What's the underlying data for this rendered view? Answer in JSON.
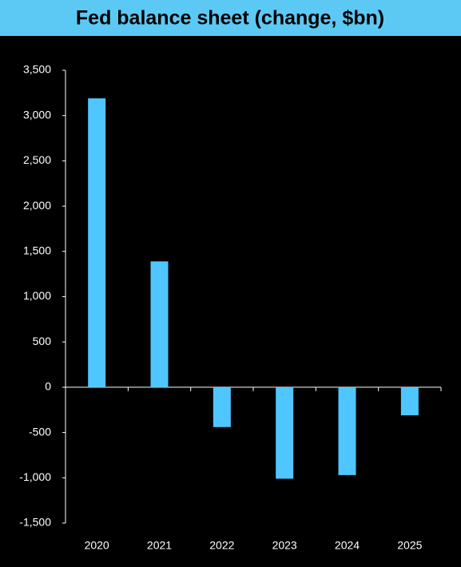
{
  "chart_data": {
    "type": "bar",
    "title": "Fed balance sheet (change, $bn)",
    "categories": [
      "2020",
      "2021",
      "2022",
      "2023",
      "2024",
      "2025"
    ],
    "values": [
      3190,
      1390,
      -440,
      -1010,
      -970,
      -310
    ],
    "color": "#4fc6ff",
    "ylim": [
      -1500,
      3500
    ],
    "yticks": [
      {
        "value": -1500,
        "label": "-1,500"
      },
      {
        "value": -1000,
        "label": "-1,000"
      },
      -500,
      0,
      500,
      {
        "value": 1000,
        "label": "1,000"
      },
      {
        "value": 1500,
        "label": "1,500"
      },
      {
        "value": 2000,
        "label": "2,000"
      },
      {
        "value": 2500,
        "label": "2,500"
      },
      {
        "value": 3000,
        "label": "3,000"
      },
      {
        "value": 3500,
        "label": "3,500"
      }
    ],
    "grid": false
  }
}
